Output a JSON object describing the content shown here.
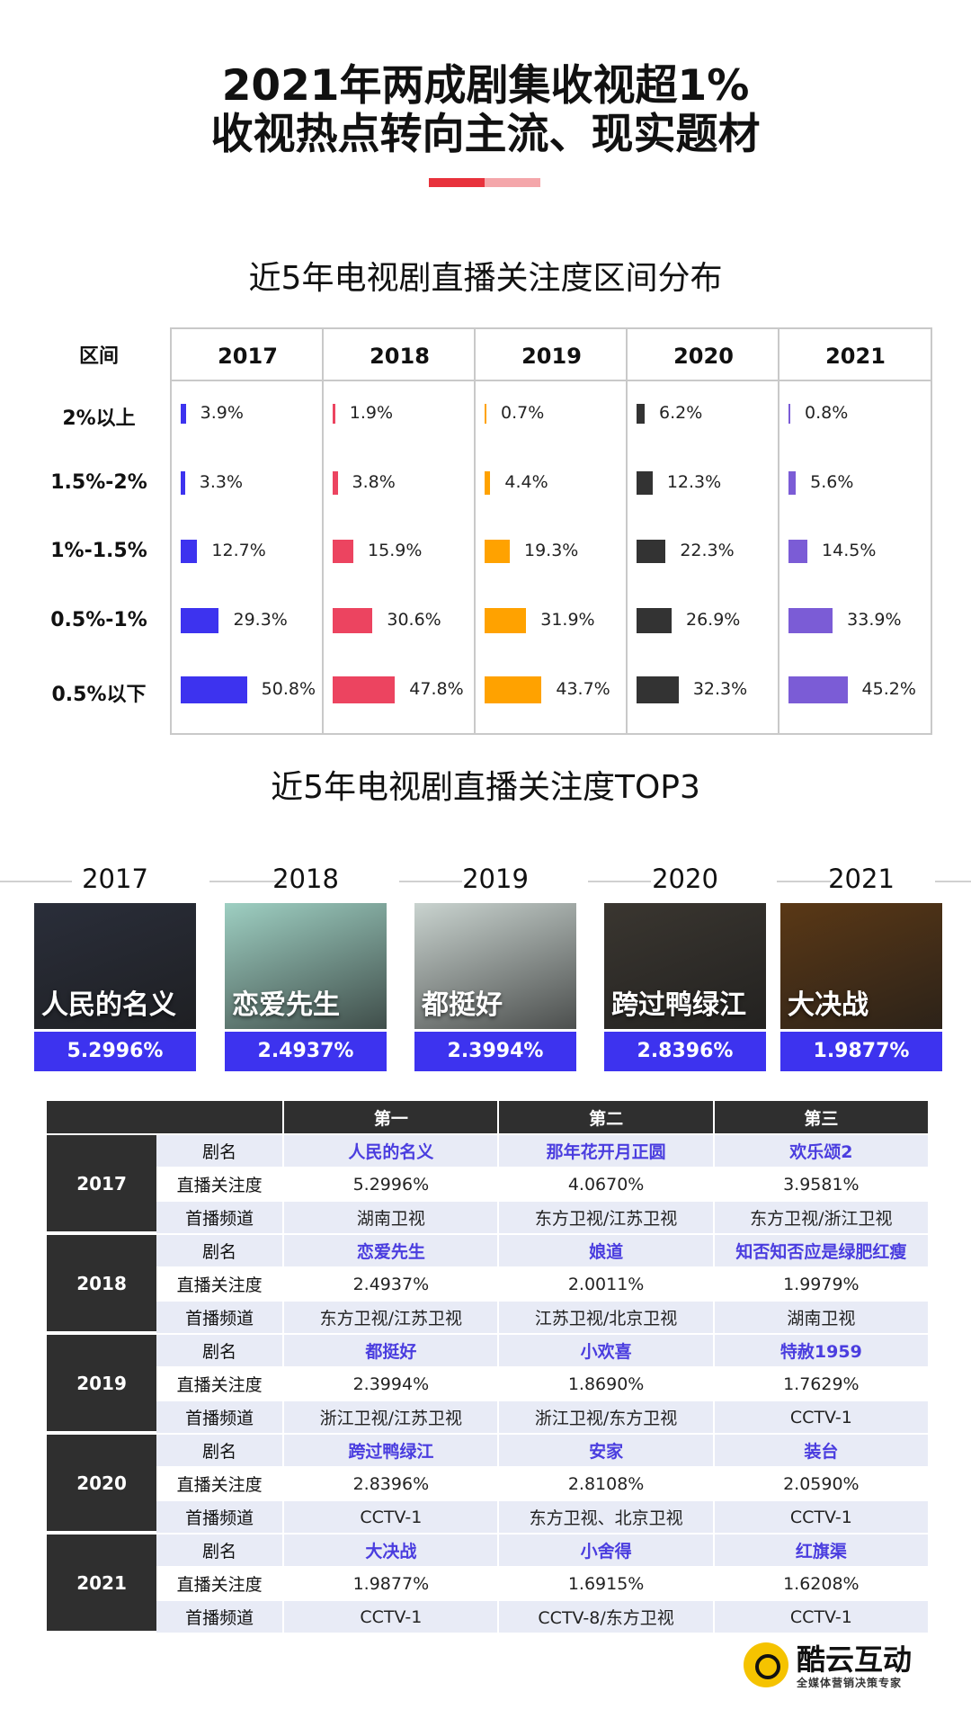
{
  "header": {
    "title_line1": "2021年两成剧集收视超1%",
    "title_line2": "收视热点转向主流、现实题材"
  },
  "distribution": {
    "title": "近5年电视剧直播关注度区间分布",
    "corner_label": "区间"
  },
  "top3": {
    "title": "近5年电视剧直播关注度TOP3",
    "posters": [
      {
        "year": "2017",
        "name": "人民的名义",
        "rating": "5.2996%",
        "color": "#2a2e3a"
      },
      {
        "year": "2018",
        "name": "恋爱先生",
        "rating": "2.4937%",
        "color": "#9ecfc2"
      },
      {
        "year": "2019",
        "name": "都挺好",
        "rating": "2.3994%",
        "color": "#c9d3cf"
      },
      {
        "year": "2020",
        "name": "跨过鸭绿江",
        "rating": "2.8396%",
        "color": "#3a3630"
      },
      {
        "year": "2021",
        "name": "大决战",
        "rating": "1.9877%",
        "color": "#5a3816"
      }
    ],
    "table": {
      "headers": [
        "第一",
        "第二",
        "第三"
      ],
      "row_labels": [
        "剧名",
        "直播关注度",
        "首播频道"
      ],
      "years": [
        {
          "year": "2017",
          "names": [
            "人民的名义",
            "那年花开月正圆",
            "欢乐颂2"
          ],
          "ratings": [
            "5.2996%",
            "4.0670%",
            "3.9581%"
          ],
          "channels": [
            "湖南卫视",
            "东方卫视/江苏卫视",
            "东方卫视/浙江卫视"
          ]
        },
        {
          "year": "2018",
          "names": [
            "恋爱先生",
            "娘道",
            "知否知否应是绿肥红瘦"
          ],
          "ratings": [
            "2.4937%",
            "2.0011%",
            "1.9979%"
          ],
          "channels": [
            "东方卫视/江苏卫视",
            "江苏卫视/北京卫视",
            "湖南卫视"
          ]
        },
        {
          "year": "2019",
          "names": [
            "都挺好",
            "小欢喜",
            "特赦1959"
          ],
          "ratings": [
            "2.3994%",
            "1.8690%",
            "1.7629%"
          ],
          "channels": [
            "浙江卫视/江苏卫视",
            "浙江卫视/东方卫视",
            "CCTV-1"
          ]
        },
        {
          "year": "2020",
          "names": [
            "跨过鸭绿江",
            "安家",
            "装台"
          ],
          "ratings": [
            "2.8396%",
            "2.8108%",
            "2.0590%"
          ],
          "channels": [
            "CCTV-1",
            "东方卫视、北京卫视",
            "CCTV-1"
          ]
        },
        {
          "year": "2021",
          "names": [
            "大决战",
            "小舍得",
            "红旗渠"
          ],
          "ratings": [
            "1.9877%",
            "1.6915%",
            "1.6208%"
          ],
          "channels": [
            "CCTV-1",
            "CCTV-8/东方卫视",
            "CCTV-1"
          ]
        }
      ]
    }
  },
  "brand": {
    "name": "酷云互动",
    "slogan": "全媒体营销决策专家"
  },
  "chart_data": {
    "type": "bar",
    "title": "近5年电视剧直播关注度区间分布",
    "categories": [
      "2%以上",
      "1.5%-2%",
      "1%-1.5%",
      "0.5%-1%",
      "0.5%以下"
    ],
    "unit": "%",
    "series": [
      {
        "name": "2017",
        "color": "#3d33ef",
        "values": [
          3.9,
          3.3,
          12.7,
          29.3,
          50.8
        ]
      },
      {
        "name": "2018",
        "color": "#ec4460",
        "values": [
          1.9,
          3.8,
          15.9,
          30.6,
          47.8
        ]
      },
      {
        "name": "2019",
        "color": "#ffa200",
        "values": [
          0.7,
          4.4,
          19.3,
          31.9,
          43.7
        ]
      },
      {
        "name": "2020",
        "color": "#333333",
        "values": [
          6.2,
          12.3,
          22.3,
          26.9,
          32.3
        ]
      },
      {
        "name": "2021",
        "color": "#7b5cd6",
        "values": [
          0.8,
          5.6,
          14.5,
          33.9,
          45.2
        ]
      }
    ],
    "value_labels": [
      [
        "3.9%",
        "3.3%",
        "12.7%",
        "29.3%",
        "50.8%"
      ],
      [
        "1.9%",
        "3.8%",
        "15.9%",
        "30.6%",
        "47.8%"
      ],
      [
        "0.7%",
        "4.4%",
        "19.3%",
        "31.9%",
        "43.7%"
      ],
      [
        "6.2%",
        "12.3%",
        "22.3%",
        "26.9%",
        "32.3%"
      ],
      [
        "0.8%",
        "5.6%",
        "14.5%",
        "33.9%",
        "45.2%"
      ]
    ]
  }
}
